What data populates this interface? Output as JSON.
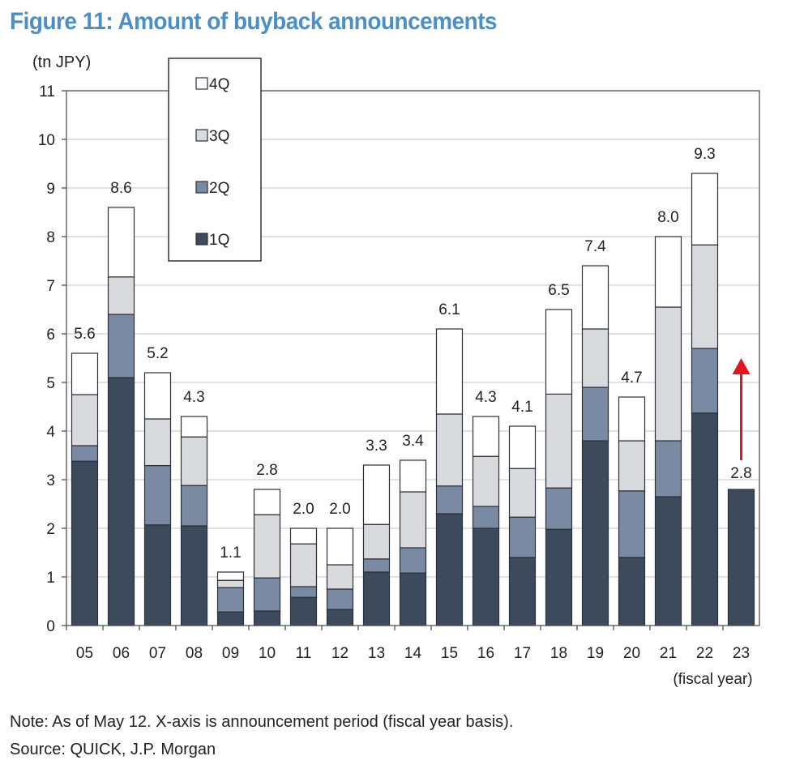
{
  "title": "Figure 11: Amount of buyback announcements",
  "footnote": {
    "note": "Note: As of May 12. X-axis is announcement period (fiscal year basis).",
    "source": "Source: QUICK, J.P. Morgan"
  },
  "colors": {
    "q1": "#3d4a5c",
    "q2": "#7a8aa3",
    "q3": "#d9dadd",
    "q4": "#ffffff",
    "arrow": "#e8141b",
    "grid": "#cfcfcf",
    "title": "#4a8fc9"
  },
  "chart_data": {
    "type": "bar",
    "stacked": true,
    "ylabel": "(tn JPY)",
    "xlabel": "(fiscal year)",
    "ylim": [
      0,
      11
    ],
    "yticks": [
      "0",
      "1",
      "2",
      "3",
      "4",
      "5",
      "6",
      "7",
      "8",
      "9",
      "10",
      "11"
    ],
    "grid": true,
    "legend_placement": "top-left",
    "categories": [
      "05",
      "06",
      "07",
      "08",
      "09",
      "10",
      "11",
      "12",
      "13",
      "14",
      "15",
      "16",
      "17",
      "18",
      "19",
      "20",
      "21",
      "22",
      "23"
    ],
    "series": [
      {
        "name": "1Q",
        "values": [
          3.38,
          5.1,
          2.07,
          2.05,
          0.28,
          0.3,
          0.58,
          0.33,
          1.1,
          1.08,
          2.3,
          2.0,
          1.4,
          1.98,
          3.8,
          1.4,
          2.65,
          4.37,
          2.8
        ]
      },
      {
        "name": "2Q",
        "values": [
          0.32,
          1.3,
          1.22,
          0.83,
          0.5,
          0.68,
          0.22,
          0.42,
          0.27,
          0.52,
          0.57,
          0.45,
          0.83,
          0.85,
          1.1,
          1.37,
          1.15,
          1.33,
          0
        ]
      },
      {
        "name": "3Q",
        "values": [
          1.05,
          0.77,
          0.96,
          1.0,
          0.15,
          1.3,
          0.88,
          0.5,
          0.71,
          1.15,
          1.48,
          1.03,
          1.0,
          1.93,
          1.2,
          1.03,
          2.75,
          2.13,
          0
        ]
      },
      {
        "name": "4Q",
        "values": [
          0.85,
          1.43,
          0.95,
          0.42,
          0.17,
          0.52,
          0.32,
          0.75,
          1.22,
          0.65,
          1.75,
          0.82,
          0.87,
          1.74,
          1.3,
          0.9,
          1.45,
          1.47,
          0
        ]
      }
    ],
    "totals": [
      "5.6",
      "8.6",
      "5.2",
      "4.3",
      "1.1",
      "2.8",
      "2.0",
      "2.0",
      "3.3",
      "3.4",
      "6.1",
      "4.3",
      "4.1",
      "6.5",
      "7.4",
      "4.7",
      "8.0",
      "9.3",
      "2.8"
    ],
    "total_values": [
      5.6,
      8.6,
      5.2,
      4.3,
      1.1,
      2.8,
      2.0,
      2.0,
      3.3,
      3.4,
      6.1,
      4.3,
      4.1,
      6.5,
      7.4,
      4.7,
      8.0,
      9.3,
      2.8
    ],
    "annotations": [
      {
        "type": "arrow",
        "category": "23",
        "from": 3.4,
        "to": 5.5
      }
    ]
  }
}
